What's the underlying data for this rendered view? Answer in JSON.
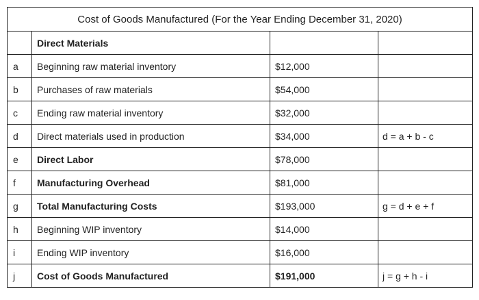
{
  "table": {
    "title": "Cost of Goods Manufactured (For the Year Ending December 31, 2020)",
    "header_row": {
      "label": "Direct Materials"
    },
    "rows": [
      {
        "letter": "a",
        "label": "Beginning raw material inventory",
        "amount": "$12,000",
        "formula": "",
        "bold_label": false,
        "bold_amount": false
      },
      {
        "letter": "b",
        "label": "Purchases of raw materials",
        "amount": "$54,000",
        "formula": "",
        "bold_label": false,
        "bold_amount": false
      },
      {
        "letter": "c",
        "label": "Ending raw material inventory",
        "amount": "$32,000",
        "formula": "",
        "bold_label": false,
        "bold_amount": false
      },
      {
        "letter": "d",
        "label": "Direct materials used in production",
        "amount": "$34,000",
        "formula": "d = a + b - c",
        "bold_label": false,
        "bold_amount": false
      },
      {
        "letter": "e",
        "label": "Direct Labor",
        "amount": "$78,000",
        "formula": "",
        "bold_label": true,
        "bold_amount": false
      },
      {
        "letter": "f",
        "label": "Manufacturing Overhead",
        "amount": "$81,000",
        "formula": "",
        "bold_label": true,
        "bold_amount": false
      },
      {
        "letter": "g",
        "label": "Total Manufacturing Costs",
        "amount": "$193,000",
        "formula": "g = d + e + f",
        "bold_label": true,
        "bold_amount": false
      },
      {
        "letter": "h",
        "label": "Beginning WIP inventory",
        "amount": "$14,000",
        "formula": "",
        "bold_label": false,
        "bold_amount": false
      },
      {
        "letter": "i",
        "label": "Ending WIP inventory",
        "amount": "$16,000",
        "formula": "",
        "bold_label": false,
        "bold_amount": false
      },
      {
        "letter": "j",
        "label": "Cost of Goods Manufactured",
        "amount": "$191,000",
        "formula": "j = g + h - i",
        "bold_label": true,
        "bold_amount": true
      }
    ]
  }
}
